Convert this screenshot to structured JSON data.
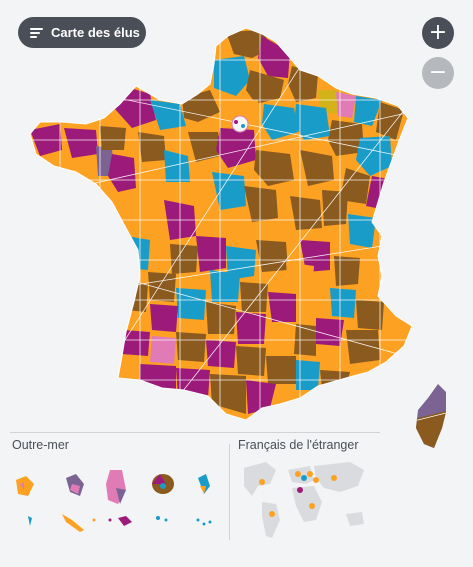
{
  "legend_button": {
    "label": "Carte des élus",
    "icon": "menu-lines-icon"
  },
  "zoom": {
    "in_label": "+",
    "out_label": "−"
  },
  "sections": {
    "overseas": "Outre-mer",
    "abroad": "Français de l'étranger"
  },
  "colors": {
    "orange": "#fca121",
    "blue": "#1a9cc9",
    "magenta": "#9c1a7a",
    "brown": "#8a5a1e",
    "pink": "#e07bb5",
    "violet": "#7b6494",
    "yellow": "#d4b21a",
    "background": "#f3f4f6"
  }
}
